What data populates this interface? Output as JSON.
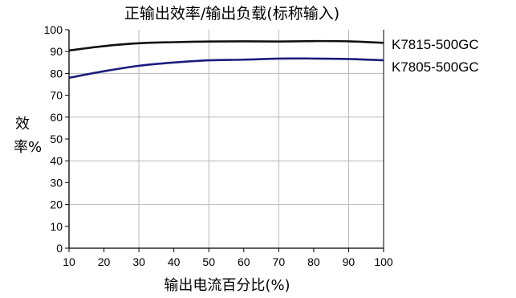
{
  "chart_data": {
    "type": "line",
    "title": "正输出效率/输出负载(标称输入)",
    "xlabel": "输出电流百分比(%)",
    "ylabel": "效率%",
    "x": [
      10,
      20,
      30,
      40,
      50,
      60,
      70,
      80,
      90,
      100
    ],
    "xlim": [
      10,
      100
    ],
    "ylim": [
      0,
      100
    ],
    "xticks": [
      10,
      20,
      30,
      40,
      50,
      60,
      70,
      80,
      90,
      100
    ],
    "yticks": [
      0,
      10,
      20,
      30,
      40,
      50,
      60,
      70,
      80,
      90,
      100
    ],
    "grid": true,
    "legend": "right, at line ends",
    "series": [
      {
        "name": "K7815-500GC",
        "color": "#111111",
        "values": [
          90.5,
          92.5,
          93.8,
          94.3,
          94.6,
          94.7,
          94.6,
          94.8,
          94.7,
          94.0
        ]
      },
      {
        "name": "K7805-500GC",
        "color": "#1c1c7e",
        "values": [
          78.0,
          81.0,
          83.5,
          85.0,
          86.0,
          86.3,
          86.8,
          86.8,
          86.6,
          86.0
        ]
      }
    ]
  }
}
